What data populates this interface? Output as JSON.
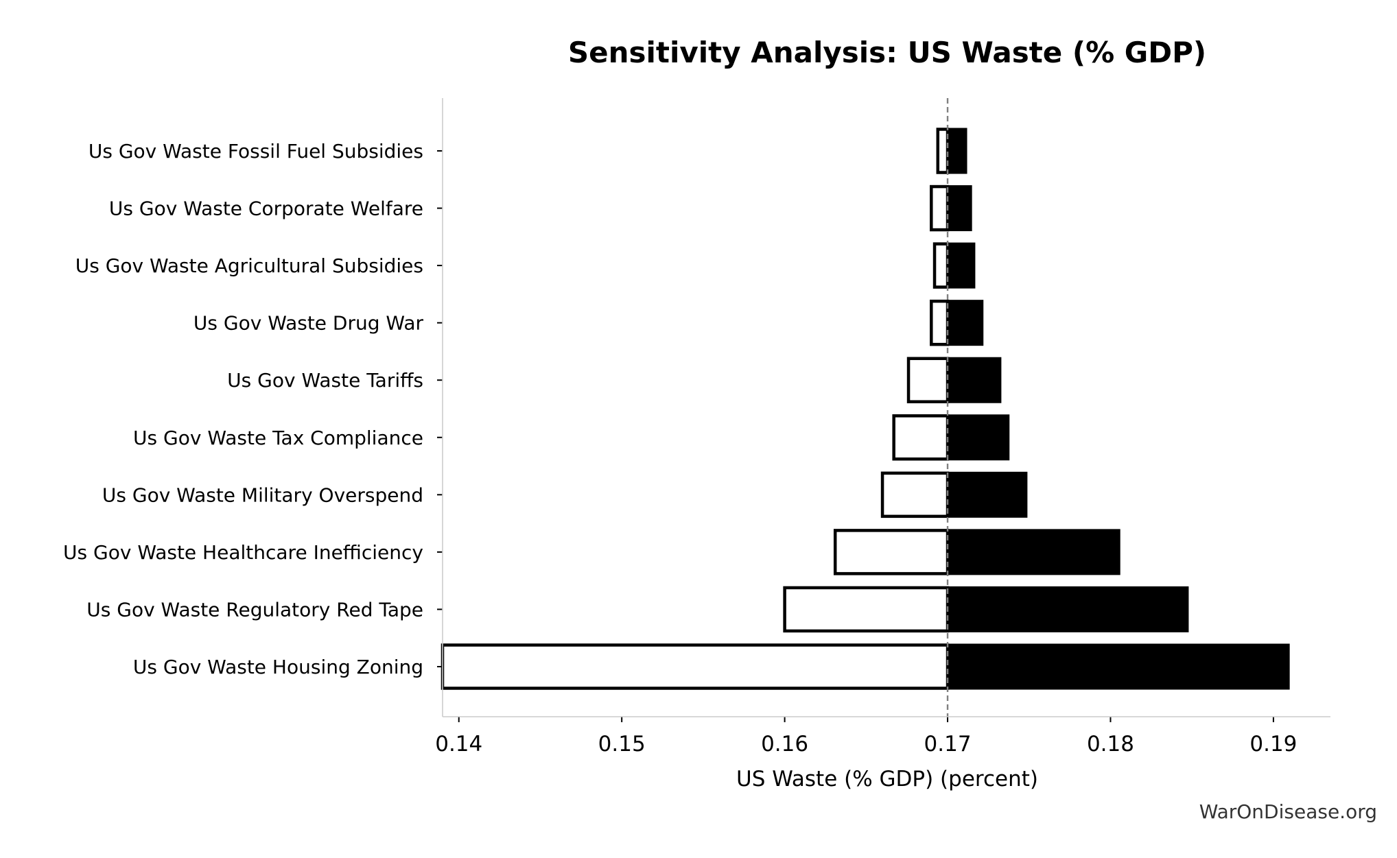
{
  "chart_data": {
    "type": "bar",
    "subtype": "tornado",
    "title": "Sensitivity Analysis: US Waste (% GDP)",
    "xlabel": "US Waste (% GDP) (percent)",
    "ylabel": "",
    "xlim": [
      0.139,
      0.1935
    ],
    "xticks": [
      0.14,
      0.15,
      0.16,
      0.17,
      0.18,
      0.19
    ],
    "xtick_labels": [
      "0.14",
      "0.15",
      "0.16",
      "0.17",
      "0.18",
      "0.19"
    ],
    "baseline": 0.17,
    "categories": [
      "Us Gov Waste Fossil Fuel Subsidies",
      "Us Gov Waste Corporate Welfare",
      "Us Gov Waste Agricultural Subsidies",
      "Us Gov Waste Drug War",
      "Us Gov Waste Tariffs",
      "Us Gov Waste Tax Compliance",
      "Us Gov Waste Military Overspend",
      "Us Gov Waste Healthcare Inefficiency",
      "Us Gov Waste Regulatory Red Tape",
      "Us Gov Waste Housing Zoning"
    ],
    "low_values": [
      0.1694,
      0.169,
      0.1692,
      0.169,
      0.1676,
      0.1667,
      0.166,
      0.1631,
      0.16,
      0.139
    ],
    "high_values": [
      0.1712,
      0.1715,
      0.1717,
      0.1722,
      0.1733,
      0.1738,
      0.1749,
      0.1806,
      0.1848,
      0.191
    ],
    "colors": {
      "low_fill": "#ffffff",
      "low_stroke": "#000000",
      "high_fill": "#000000",
      "baseline": "#808080",
      "axis": "#cccccc"
    },
    "grid": false,
    "legend": "none"
  },
  "watermark": "WarOnDisease.org"
}
